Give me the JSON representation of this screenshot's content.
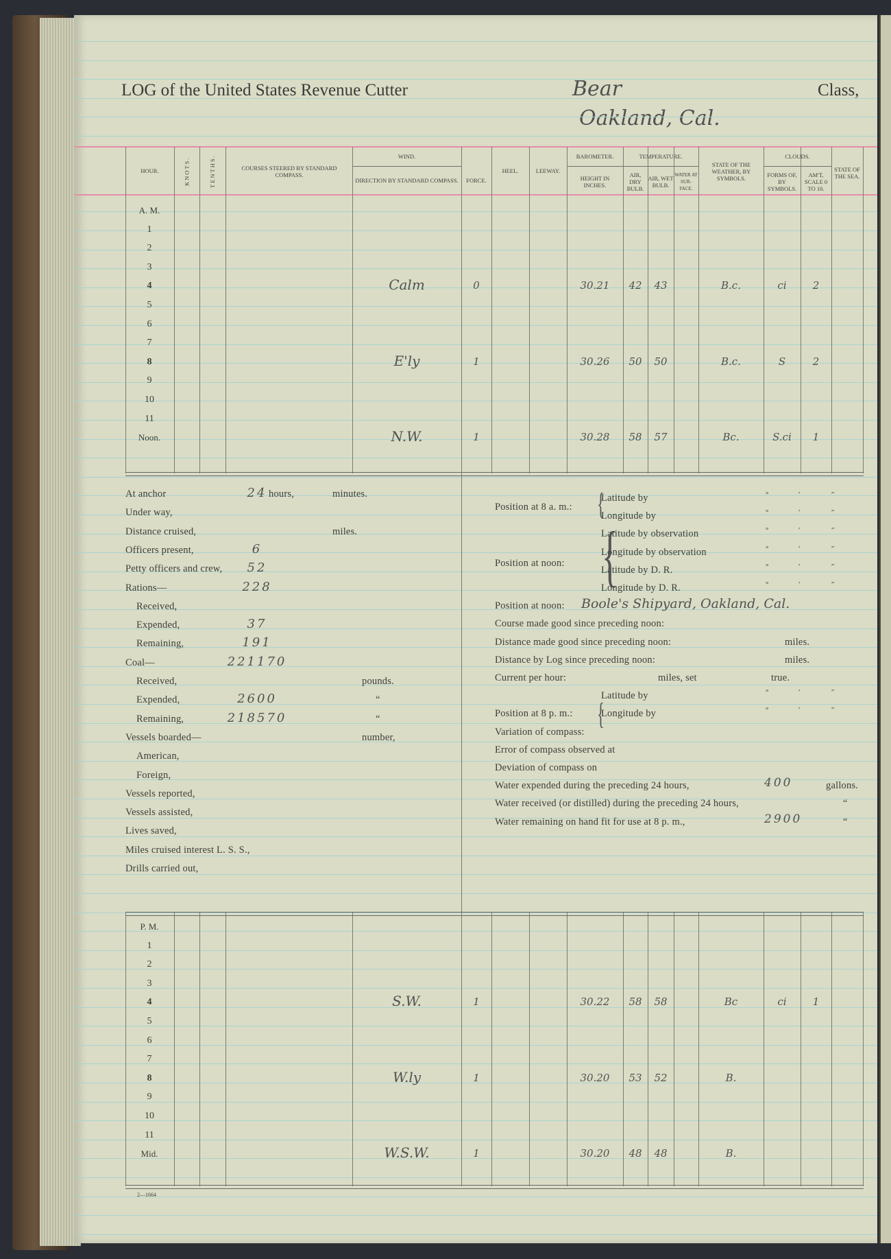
{
  "header": {
    "title": "LOG of the United States Revenue Cutter",
    "vessel_name": "Bear",
    "location": "Oakland, Cal.",
    "class_label": "Class,"
  },
  "columns": {
    "hour": "HOUR.",
    "knots": "KNOTS.",
    "tenths": "TENTHS.",
    "courses": "COURSES STEERED BY STANDARD COMPASS.",
    "wind": "WIND.",
    "wind_direction": "DIRECTION BY STANDARD COMPASS.",
    "wind_force": "FORCE.",
    "heel": "HEEL.",
    "leeway": "LEEWAY.",
    "barometer": "BAROMETER.",
    "barometer_height": "HEIGHT IN INCHES.",
    "temperature": "TEMPERATURE.",
    "air_dry": "AIR, DRY BULB.",
    "air_wet": "AIR, WET BULB.",
    "water_surface": "WATER AT SUR- FACE.",
    "weather": "STATE OF THE WEATHER, BY SYMBOLS.",
    "clouds": "CLOUDS.",
    "cloud_forms": "FORMS OF, BY SYMBOLS.",
    "cloud_amount": "AM'T, SCALE 0 TO 10.",
    "sea": "STATE OF THE SEA."
  },
  "am_rows": [
    {
      "hour": "A. M."
    },
    {
      "hour": "1"
    },
    {
      "hour": "2"
    },
    {
      "hour": "3"
    },
    {
      "hour": "4",
      "wind_direction": "Calm",
      "wind_force": "0",
      "barometer": "30.21",
      "air_dry": "42",
      "air_wet": "43",
      "weather": "B.c.",
      "cloud_forms": "ci",
      "cloud_amount": "2"
    },
    {
      "hour": "5"
    },
    {
      "hour": "6"
    },
    {
      "hour": "7"
    },
    {
      "hour": "8",
      "wind_direction": "E'ly",
      "wind_force": "1",
      "barometer": "30.26",
      "air_dry": "50",
      "air_wet": "50",
      "weather": "B.c.",
      "cloud_forms": "S",
      "cloud_amount": "2"
    },
    {
      "hour": "9"
    },
    {
      "hour": "10"
    },
    {
      "hour": "11"
    },
    {
      "hour": "Noon.",
      "wind_direction": "N.W.",
      "wind_force": "1",
      "barometer": "30.28",
      "air_dry": "58",
      "air_wet": "57",
      "weather": "Bc.",
      "cloud_forms": "S.ci",
      "cloud_amount": "1"
    }
  ],
  "pm_rows": [
    {
      "hour": "P. M."
    },
    {
      "hour": "1"
    },
    {
      "hour": "2"
    },
    {
      "hour": "3"
    },
    {
      "hour": "4",
      "wind_direction": "S.W.",
      "wind_force": "1",
      "barometer": "30.22",
      "air_dry": "58",
      "air_wet": "58",
      "weather": "Bc",
      "cloud_forms": "ci",
      "cloud_amount": "1"
    },
    {
      "hour": "5"
    },
    {
      "hour": "6"
    },
    {
      "hour": "7"
    },
    {
      "hour": "8",
      "wind_direction": "W.ly",
      "wind_force": "1",
      "barometer": "30.20",
      "air_dry": "53",
      "air_wet": "52",
      "weather": "B."
    },
    {
      "hour": "9"
    },
    {
      "hour": "10"
    },
    {
      "hour": "11"
    },
    {
      "hour": "Mid.",
      "wind_direction": "W.S.W.",
      "wind_force": "1",
      "barometer": "30.20",
      "air_dry": "48",
      "air_wet": "48",
      "weather": "B."
    }
  ],
  "summary_left": [
    {
      "label": "At anchor",
      "value": "24",
      "unit": "hours,",
      "unit2": "minutes."
    },
    {
      "label": "Under way,"
    },
    {
      "label": "Distance cruised,",
      "unit2": "miles."
    },
    {
      "label": "Officers present,",
      "value": "6"
    },
    {
      "label": "Petty officers and crew,",
      "value": "52"
    },
    {
      "label": "Rations—",
      "value": "228"
    },
    {
      "label": "Received,",
      "sub": true
    },
    {
      "label": "Expended,",
      "sub": true,
      "value": "37"
    },
    {
      "label": "Remaining,",
      "sub": true,
      "value": "191"
    },
    {
      "label": "Coal—",
      "value": "221170"
    },
    {
      "label": "Received,",
      "sub": true,
      "unit3": "pounds."
    },
    {
      "label": "Expended,",
      "sub": true,
      "value": "2600",
      "unit3": "“"
    },
    {
      "label": "Remaining,",
      "sub": true,
      "value": "218570",
      "unit3": "“"
    },
    {
      "label": "Vessels boarded—",
      "unit3": "number,"
    },
    {
      "label": "American,",
      "sub": true
    },
    {
      "label": "Foreign,",
      "sub": true
    },
    {
      "label": "Vessels reported,"
    },
    {
      "label": "Vessels assisted,"
    },
    {
      "label": "Lives saved,"
    },
    {
      "label": "Miles cruised interest L. S. S.,"
    },
    {
      "label": "Drills carried out,"
    }
  ],
  "summary_right": {
    "pos_8am_label": "Position at 8 a. m.:",
    "pos_noon_label": "Position at noon:",
    "pos_8pm_label": "Position at 8 p. m.:",
    "coord_marks": [
      "°",
      "′",
      "″"
    ],
    "lines": [
      {
        "label": "Latitude by",
        "coords": true
      },
      {
        "label": "Longitude by",
        "coords": true
      },
      {
        "label": "Latitude by observation",
        "coords": true
      },
      {
        "label": "Longitude by observation",
        "coords": true
      },
      {
        "label": "Latitude by D. R.",
        "coords": true
      },
      {
        "label": "Longitude by D. R.",
        "coords": true
      },
      {
        "text": "Position at noon:",
        "value": "Boole's Shipyard, Oakland, Cal."
      },
      {
        "text": "Course made good since preceding noon:"
      },
      {
        "text": "Distance made good since preceding noon:",
        "unit": "miles."
      },
      {
        "text": "Distance by Log since preceding noon:",
        "unit": "miles."
      },
      {
        "text": "Current per hour:",
        "mid": "miles, set",
        "unit": "true."
      },
      {
        "label": "Latitude by",
        "coords": true
      },
      {
        "label": "Longitude by",
        "coords": true
      },
      {
        "text": "Variation of compass:"
      },
      {
        "text": "Error of compass observed at"
      },
      {
        "text": "Deviation of compass on"
      },
      {
        "text": "Water expended during the preceding 24 hours,",
        "value": "400",
        "unit2": "gallons."
      },
      {
        "text": "Water received (or distilled) during the preceding 24 hours,",
        "unit2": "“"
      },
      {
        "text": "Water remaining on hand fit for use at 8 p. m.,",
        "value": "2900",
        "unit2": "“"
      }
    ]
  },
  "form_number": "2—1664",
  "colors": {
    "paper": "#dadcc6",
    "ruling": "#a9d3cf",
    "margin_rule": "#e58fa5",
    "ink": "#505250"
  }
}
